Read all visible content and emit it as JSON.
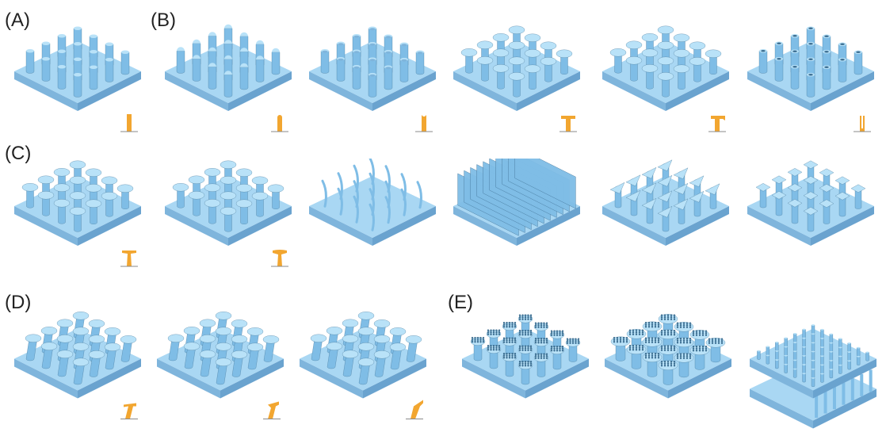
{
  "labels": {
    "a": "(A)",
    "b": "(B)",
    "c": "(C)",
    "d": "(D)",
    "e": "(E)"
  },
  "colors": {
    "plate_top": "#a9d7f3",
    "plate_left": "#7fb5dc",
    "plate_right": "#6aa3cf",
    "pillar": "#7fbde6",
    "cap": "#b9e2f8",
    "profile": "#f2a630",
    "line": "#3d6f92"
  },
  "tiles": [
    {
      "id": "a1",
      "kind": "plain",
      "profile": "straight"
    },
    {
      "id": "b1",
      "kind": "round",
      "profile": "round"
    },
    {
      "id": "b2",
      "kind": "concave",
      "profile": "concave"
    },
    {
      "id": "b3",
      "kind": "mushroom",
      "profile": "t-cap"
    },
    {
      "id": "b4",
      "kind": "mushroom",
      "profile": "lip-cap"
    },
    {
      "id": "b5",
      "kind": "hollow",
      "profile": "u-shape"
    },
    {
      "id": "c1",
      "kind": "mushroom-taper",
      "profile": "t-taper"
    },
    {
      "id": "c2",
      "kind": "mushroom-taper",
      "profile": "t-taper-round"
    },
    {
      "id": "c3",
      "kind": "hairs",
      "profile": ""
    },
    {
      "id": "c4",
      "kind": "walls",
      "profile": ""
    },
    {
      "id": "c5",
      "kind": "triangle-caps",
      "profile": ""
    },
    {
      "id": "c6",
      "kind": "square-caps",
      "profile": ""
    },
    {
      "id": "d1",
      "kind": "tilted",
      "profile": "tilt-1"
    },
    {
      "id": "d2",
      "kind": "tilted",
      "profile": "tilt-2"
    },
    {
      "id": "d3",
      "kind": "tilted",
      "profile": "tilt-3"
    },
    {
      "id": "e1",
      "kind": "hier-small",
      "profile": ""
    },
    {
      "id": "e2",
      "kind": "hier-large",
      "profile": ""
    },
    {
      "id": "e3",
      "kind": "double-layer",
      "profile": ""
    }
  ]
}
